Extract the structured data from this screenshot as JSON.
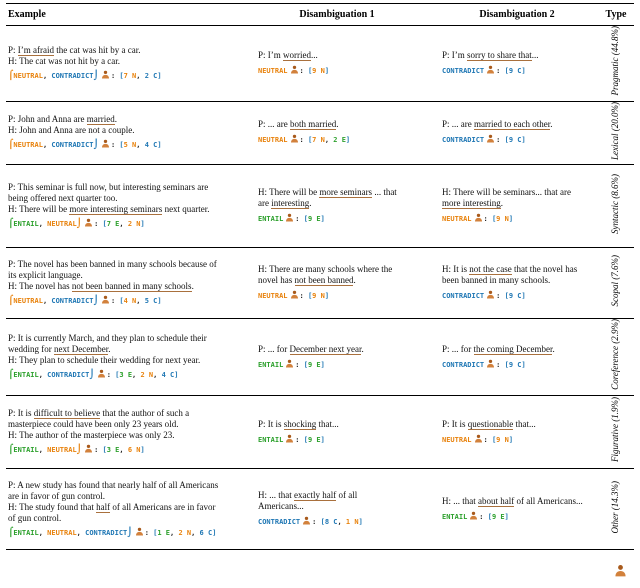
{
  "header": {
    "columns": [
      "Example",
      "Disambiguation 1",
      "Disambiguation 2",
      "Type"
    ]
  },
  "colors": {
    "entail": "#2ca02c",
    "neutral": "#e8820c",
    "contradict": "#1f77b4",
    "underline": "#a9703d",
    "vote_bracket": "#1f77b4",
    "person": "#d2813c",
    "person_dark": "#a85a1c"
  },
  "label_names": {
    "E": "ENTAIL",
    "N": "NEUTRAL",
    "C": "CONTRADICT"
  },
  "icons": {
    "set_open": "⌠",
    "set_close": "⌡",
    "annotator": "person-silhouette"
  },
  "caption_fragment": {
    "icon": "person-silhouette"
  },
  "rows": [
    {
      "type": "Pragmatic (44.8%)",
      "example": {
        "premise": [
          {
            "text": "P: "
          },
          {
            "text": "I’m afraid",
            "underline": true
          },
          {
            "text": " the cat was hit by a car."
          }
        ],
        "hypothesis": [
          {
            "text": "H: The cat was not hit by a car."
          }
        ],
        "labels": [
          "N",
          "C"
        ],
        "votes": [
          {
            "count": "7",
            "label": "N"
          },
          {
            "count": "2",
            "label": "C"
          }
        ]
      },
      "d1": {
        "sentence": [
          {
            "text": "P: I’m "
          },
          {
            "text": "worried",
            "underline": true
          },
          {
            "text": "..."
          }
        ],
        "labels": [
          "N"
        ],
        "votes": [
          {
            "count": "9",
            "label": "N"
          }
        ]
      },
      "d2": {
        "sentence": [
          {
            "text": "P: I’m "
          },
          {
            "text": "sorry to share that",
            "underline": true
          },
          {
            "text": "..."
          }
        ],
        "labels": [
          "C"
        ],
        "votes": [
          {
            "count": "9",
            "label": "C"
          }
        ]
      }
    },
    {
      "type": "Lexical (20.0%)",
      "example": {
        "premise": [
          {
            "text": "P: John and Anna are "
          },
          {
            "text": "married",
            "underline": true
          },
          {
            "text": "."
          }
        ],
        "hypothesis": [
          {
            "text": "H: John and Anna are not a couple."
          }
        ],
        "labels": [
          "N",
          "C"
        ],
        "votes": [
          {
            "count": "5",
            "label": "N"
          },
          {
            "count": "4",
            "label": "C"
          }
        ]
      },
      "d1": {
        "sentence": [
          {
            "text": "P: ... are "
          },
          {
            "text": "both married",
            "underline": true
          },
          {
            "text": "."
          }
        ],
        "labels": [
          "N"
        ],
        "votes": [
          {
            "count": "7",
            "label": "N"
          },
          {
            "count": "2",
            "label": "E"
          }
        ]
      },
      "d2": {
        "sentence": [
          {
            "text": "P: ... are "
          },
          {
            "text": "married to each other",
            "underline": true
          },
          {
            "text": "."
          }
        ],
        "labels": [
          "C"
        ],
        "votes": [
          {
            "count": "9",
            "label": "C"
          }
        ]
      }
    },
    {
      "type": "Syntactic (8.6%)",
      "example": {
        "premise": [
          {
            "text": "P: This seminar is full now, but interesting seminars are being offered next quarter too."
          }
        ],
        "hypothesis": [
          {
            "text": "H: There will be "
          },
          {
            "text": "more interesting seminars",
            "underline": true
          },
          {
            "text": " next quarter."
          }
        ],
        "labels": [
          "E",
          "N"
        ],
        "votes": [
          {
            "count": "7",
            "label": "E"
          },
          {
            "count": "2",
            "label": "N"
          }
        ]
      },
      "d1": {
        "sentence": [
          {
            "text": "H: There will be "
          },
          {
            "text": "more seminars",
            "underline": true
          },
          {
            "text": " ... that are "
          },
          {
            "text": "interesting",
            "underline": true
          },
          {
            "text": "."
          }
        ],
        "labels": [
          "E"
        ],
        "votes": [
          {
            "count": "9",
            "label": "E"
          }
        ]
      },
      "d2": {
        "sentence": [
          {
            "text": "H: There will be seminars... that are "
          },
          {
            "text": "more interesting",
            "underline": true
          },
          {
            "text": "."
          }
        ],
        "labels": [
          "N"
        ],
        "votes": [
          {
            "count": "9",
            "label": "N"
          }
        ]
      }
    },
    {
      "type": "Scopal (7.6%)",
      "example": {
        "premise": [
          {
            "text": "P: The novel has been banned in many schools because of its explicit language."
          }
        ],
        "hypothesis": [
          {
            "text": "H: The novel has "
          },
          {
            "text": "not been banned in many schools",
            "underline": true
          },
          {
            "text": "."
          }
        ],
        "labels": [
          "N",
          "C"
        ],
        "votes": [
          {
            "count": "4",
            "label": "N"
          },
          {
            "count": "5",
            "label": "C"
          }
        ]
      },
      "d1": {
        "sentence": [
          {
            "text": "H: There are many schools where the novel has "
          },
          {
            "text": "not been banned",
            "underline": true
          },
          {
            "text": "."
          }
        ],
        "labels": [
          "N"
        ],
        "votes": [
          {
            "count": "9",
            "label": "N"
          }
        ]
      },
      "d2": {
        "sentence": [
          {
            "text": "H: It is "
          },
          {
            "text": "not the case",
            "underline": true
          },
          {
            "text": " that the novel has been banned in many schools."
          }
        ],
        "labels": [
          "C"
        ],
        "votes": [
          {
            "count": "9",
            "label": "C"
          }
        ]
      }
    },
    {
      "type": "Coreference (2.9%)",
      "example": {
        "premise": [
          {
            "text": "P: It is currently March, and they plan to schedule their wedding for "
          },
          {
            "text": "next December",
            "underline": true
          },
          {
            "text": "."
          }
        ],
        "hypothesis": [
          {
            "text": "H: They plan to schedule their wedding for next year."
          }
        ],
        "labels": [
          "E",
          "C"
        ],
        "votes": [
          {
            "count": "3",
            "label": "E"
          },
          {
            "count": "2",
            "label": "N"
          },
          {
            "count": "4",
            "label": "C"
          }
        ]
      },
      "d1": {
        "sentence": [
          {
            "text": "P: ... for "
          },
          {
            "text": "December next year",
            "underline": true
          },
          {
            "text": "."
          }
        ],
        "labels": [
          "E"
        ],
        "votes": [
          {
            "count": "9",
            "label": "E"
          }
        ]
      },
      "d2": {
        "sentence": [
          {
            "text": "P: ... for "
          },
          {
            "text": "the coming December",
            "underline": true
          },
          {
            "text": "."
          }
        ],
        "labels": [
          "C"
        ],
        "votes": [
          {
            "count": "9",
            "label": "C"
          }
        ]
      }
    },
    {
      "type": "Figurative (1.9%)",
      "example": {
        "premise": [
          {
            "text": "P: It is "
          },
          {
            "text": "difficult to believe",
            "underline": true
          },
          {
            "text": " that the author of such a masterpiece could have been only 23 years old."
          }
        ],
        "hypothesis": [
          {
            "text": "H: The author of the masterpiece was only 23."
          }
        ],
        "labels": [
          "E",
          "N"
        ],
        "votes": [
          {
            "count": "3",
            "label": "E"
          },
          {
            "count": "6",
            "label": "N"
          }
        ]
      },
      "d1": {
        "sentence": [
          {
            "text": "P: It is "
          },
          {
            "text": "shocking",
            "underline": true
          },
          {
            "text": " that..."
          }
        ],
        "labels": [
          "E"
        ],
        "votes": [
          {
            "count": "9",
            "label": "E"
          }
        ]
      },
      "d2": {
        "sentence": [
          {
            "text": "P: It is "
          },
          {
            "text": "questionable",
            "underline": true
          },
          {
            "text": " that..."
          }
        ],
        "labels": [
          "N"
        ],
        "votes": [
          {
            "count": "9",
            "label": "N"
          }
        ]
      }
    },
    {
      "type": "Other (14.3%)",
      "example": {
        "premise": [
          {
            "text": "P: A new study has found that nearly half of all Americans are in favor of gun control."
          }
        ],
        "hypothesis": [
          {
            "text": "H: The study found that "
          },
          {
            "text": "half",
            "underline": true
          },
          {
            "text": " of all Americans are in favor of gun control."
          }
        ],
        "labels": [
          "E",
          "N",
          "C"
        ],
        "votes": [
          {
            "count": "1",
            "label": "E"
          },
          {
            "count": "2",
            "label": "N"
          },
          {
            "count": "6",
            "label": "C"
          }
        ]
      },
      "d1": {
        "sentence": [
          {
            "text": "H: ... that "
          },
          {
            "text": "exactly half",
            "underline": true
          },
          {
            "text": " of all Americans..."
          }
        ],
        "labels": [
          "C"
        ],
        "votes": [
          {
            "count": "8",
            "label": "C"
          },
          {
            "count": "1",
            "label": "N"
          }
        ]
      },
      "d2": {
        "sentence": [
          {
            "text": "H: ... that "
          },
          {
            "text": "about half",
            "underline": true
          },
          {
            "text": " of all Americans..."
          }
        ],
        "labels": [
          "E"
        ],
        "votes": [
          {
            "count": "9",
            "label": "E"
          }
        ]
      }
    }
  ]
}
